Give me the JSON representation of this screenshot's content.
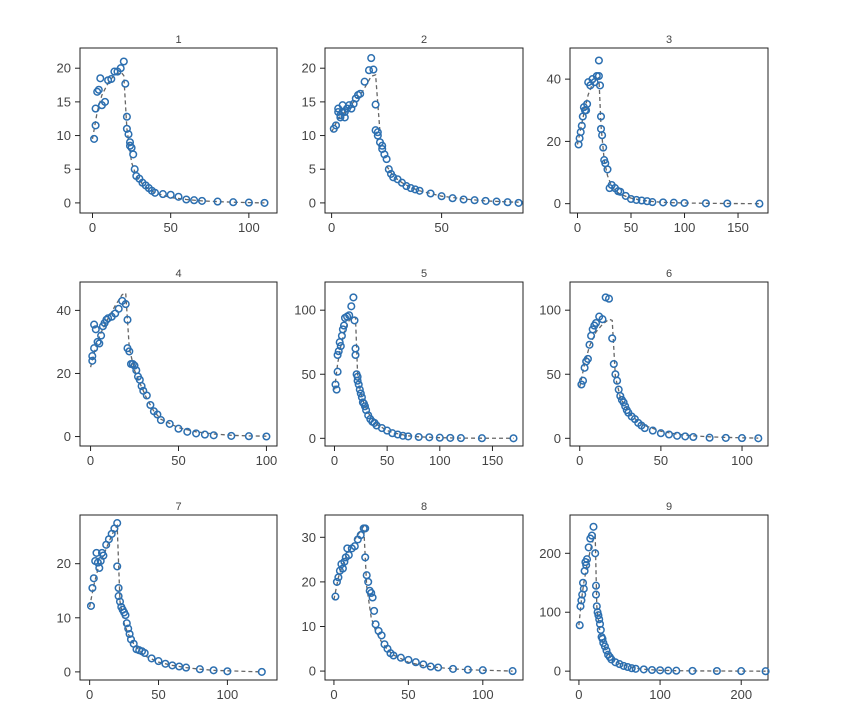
{
  "colors": {
    "marker": "#2c6fb0",
    "fit": "#666666",
    "axis": "#222222",
    "text": "#444444"
  },
  "chart_data": [
    {
      "type": "scatter",
      "title": "1",
      "xlim": [
        -8,
        118
      ],
      "ylim": [
        -1.5,
        23
      ],
      "xticks": [
        0,
        50,
        100
      ],
      "yticks": [
        0,
        5,
        10,
        15,
        20
      ],
      "x": [
        1,
        2,
        2,
        3,
        4,
        5,
        6,
        8,
        10,
        12,
        14,
        16,
        18,
        20,
        21,
        22,
        22,
        23,
        24,
        24,
        25,
        26,
        27,
        28,
        30,
        32,
        34,
        36,
        38,
        40,
        45,
        50,
        55,
        60,
        65,
        70,
        80,
        90,
        100,
        110
      ],
      "y": [
        9.5,
        11.5,
        14,
        16.5,
        16.8,
        18.5,
        14.5,
        15,
        18.2,
        18.4,
        19.5,
        19.5,
        20,
        21,
        17.7,
        12.8,
        11,
        10.2,
        9,
        8.5,
        8.2,
        7.2,
        5,
        4,
        3.6,
        3,
        2.6,
        2.2,
        1.8,
        1.5,
        1.3,
        1.2,
        0.9,
        0.5,
        0.4,
        0.3,
        0.2,
        0.1,
        0.05,
        0
      ],
      "fit_x": [
        0,
        3,
        6,
        10,
        14,
        18,
        19,
        20,
        22,
        25,
        28,
        32,
        36,
        40,
        50,
        60,
        70,
        80,
        90,
        100,
        110
      ],
      "fit_y": [
        9.5,
        13.5,
        16,
        17.8,
        19,
        19.4,
        19.2,
        18.9,
        11,
        6,
        4,
        2.8,
        2,
        1.5,
        0.8,
        0.5,
        0.3,
        0.2,
        0.1,
        0.05,
        0
      ]
    },
    {
      "type": "scatter",
      "title": "2",
      "xlim": [
        -3,
        87
      ],
      "ylim": [
        -1.5,
        23
      ],
      "xticks": [
        0,
        50
      ],
      "yticks": [
        0,
        5,
        10,
        15,
        20
      ],
      "x": [
        1,
        2,
        3,
        3,
        4,
        4,
        5,
        5,
        6,
        6,
        7,
        8,
        9,
        10,
        11,
        12,
        13,
        15,
        17,
        18,
        19,
        20,
        20,
        21,
        21,
        22,
        23,
        23,
        24,
        25,
        26,
        27,
        28,
        30,
        32,
        34,
        36,
        38,
        40,
        45,
        50,
        55,
        60,
        65,
        70,
        75,
        80,
        85
      ],
      "y": [
        11,
        11.5,
        13.5,
        14,
        12.7,
        13,
        13.5,
        14.5,
        12.7,
        13.5,
        14,
        14.5,
        14,
        14.7,
        15.5,
        16,
        16.2,
        18,
        19.7,
        21.5,
        19.8,
        14.6,
        10.8,
        10.5,
        10,
        9,
        8.5,
        8,
        7.2,
        6.5,
        5,
        4.3,
        3.8,
        3.5,
        3,
        2.5,
        2.2,
        2,
        1.8,
        1.4,
        1,
        0.7,
        0.5,
        0.4,
        0.3,
        0.2,
        0.1,
        0
      ],
      "fit_x": [
        0,
        3,
        6,
        10,
        14,
        18,
        20,
        22,
        25,
        28,
        32,
        36,
        40,
        50,
        60,
        70,
        80,
        85
      ],
      "fit_y": [
        10.5,
        12.5,
        13.5,
        15,
        16.5,
        18.8,
        19,
        10.5,
        5.5,
        4,
        3,
        2.3,
        1.8,
        1,
        0.6,
        0.3,
        0.15,
        0.1
      ],
      "fit_split": 7
    },
    {
      "type": "scatter",
      "title": "3",
      "xlim": [
        -7,
        178
      ],
      "ylim": [
        -3,
        50
      ],
      "xticks": [
        0,
        50,
        100,
        150
      ],
      "yticks": [
        0,
        20,
        40
      ],
      "x": [
        1,
        2,
        3,
        4,
        5,
        6,
        7,
        8,
        9,
        10,
        12,
        14,
        16,
        18,
        20,
        20,
        21,
        22,
        22,
        23,
        24,
        25,
        26,
        28,
        30,
        32,
        35,
        38,
        40,
        45,
        50,
        55,
        60,
        65,
        70,
        80,
        90,
        100,
        120,
        140,
        170
      ],
      "y": [
        19,
        21,
        23,
        25,
        28,
        31,
        30,
        30,
        32,
        39,
        38,
        40,
        39,
        41,
        46,
        41,
        38,
        28,
        24,
        22,
        18,
        14,
        13,
        11,
        5,
        6,
        5,
        4,
        3.8,
        2.5,
        1.5,
        1.2,
        1,
        0.8,
        0.5,
        0.4,
        0.3,
        0.2,
        0.1,
        0.05,
        0
      ],
      "fit_x": [
        0,
        3,
        6,
        10,
        14,
        18,
        20,
        22,
        25,
        28,
        32,
        36,
        40,
        50,
        60,
        70,
        80,
        100,
        120,
        140,
        170
      ],
      "fit_y": [
        19,
        24,
        29,
        35,
        38.5,
        40,
        40.5,
        25,
        14,
        9,
        5.5,
        4,
        3,
        1.8,
        1.1,
        0.7,
        0.4,
        0.2,
        0.1,
        0.05,
        0
      ]
    },
    {
      "type": "scatter",
      "title": "4",
      "xlim": [
        -6,
        106
      ],
      "ylim": [
        -3,
        49
      ],
      "xticks": [
        0,
        50,
        100
      ],
      "yticks": [
        0,
        20,
        40
      ],
      "x": [
        1,
        1,
        2,
        2,
        3,
        4,
        5,
        6,
        7,
        8,
        9,
        10,
        12,
        14,
        16,
        18,
        20,
        21,
        21,
        22,
        23,
        24,
        25,
        26,
        27,
        28,
        29,
        30,
        32,
        34,
        36,
        38,
        40,
        45,
        50,
        55,
        60,
        65,
        70,
        80,
        90,
        100
      ],
      "y": [
        24,
        25.5,
        28,
        35.5,
        34,
        30,
        29.5,
        32,
        35,
        36,
        37,
        37.5,
        38,
        39,
        40.5,
        43,
        42,
        37,
        28,
        27,
        23,
        23,
        22.5,
        21,
        19,
        18,
        16,
        14.5,
        13,
        10,
        8,
        7,
        5.2,
        4,
        2.5,
        1.5,
        1,
        0.6,
        0.4,
        0.2,
        0.1,
        0
      ],
      "fit_x": [
        0,
        3,
        6,
        10,
        14,
        18,
        20,
        22,
        25,
        28,
        32,
        36,
        40,
        50,
        60,
        70,
        80,
        90,
        100
      ],
      "fit_y": [
        22,
        28.5,
        33,
        37.5,
        41.5,
        45,
        45.5,
        28,
        21,
        17,
        12,
        8,
        5.5,
        2.8,
        1.5,
        0.8,
        0.4,
        0.2,
        0.1
      ]
    },
    {
      "type": "scatter",
      "title": "5",
      "xlim": [
        -9,
        179
      ],
      "ylim": [
        -6,
        122
      ],
      "xticks": [
        0,
        50,
        100,
        150
      ],
      "yticks": [
        0,
        50,
        100
      ],
      "x": [
        1,
        2,
        3,
        3,
        4,
        5,
        6,
        7,
        8,
        9,
        10,
        12,
        14,
        16,
        18,
        19,
        20,
        20,
        21,
        22,
        22,
        23,
        24,
        25,
        26,
        27,
        28,
        29,
        30,
        32,
        34,
        36,
        38,
        40,
        45,
        50,
        55,
        60,
        65,
        70,
        80,
        90,
        100,
        110,
        120,
        140,
        170
      ],
      "y": [
        42,
        38,
        52,
        65,
        68,
        75,
        72,
        80,
        85,
        88,
        94,
        95,
        96,
        103,
        110,
        92,
        70,
        65,
        50,
        48,
        45,
        42,
        38,
        35,
        32,
        28,
        27,
        25,
        22,
        18,
        15,
        13,
        12,
        10,
        8,
        6,
        4,
        3,
        2,
        1.5,
        1,
        0.8,
        0.5,
        0.3,
        0.2,
        0.1,
        0
      ],
      "fit_x": [
        0,
        3,
        6,
        10,
        14,
        18,
        20,
        22,
        25,
        28,
        32,
        36,
        40,
        50,
        60,
        70,
        80,
        100,
        120,
        140,
        170
      ],
      "fit_y": [
        38,
        58,
        72,
        85,
        92,
        95,
        94,
        50,
        35,
        27,
        20,
        15,
        11,
        6,
        3.5,
        2,
        1.2,
        0.5,
        0.2,
        0.1,
        0
      ]
    },
    {
      "type": "scatter",
      "title": "6",
      "xlim": [
        -6,
        116
      ],
      "ylim": [
        -6,
        122
      ],
      "xticks": [
        0,
        50,
        100
      ],
      "yticks": [
        0,
        50,
        100
      ],
      "x": [
        1,
        2,
        3,
        4,
        5,
        6,
        7,
        8,
        9,
        10,
        12,
        14,
        16,
        18,
        20,
        21,
        22,
        23,
        24,
        25,
        26,
        27,
        28,
        29,
        30,
        32,
        34,
        36,
        38,
        40,
        45,
        50,
        55,
        60,
        65,
        70,
        80,
        90,
        100,
        110
      ],
      "y": [
        42,
        45,
        55,
        60,
        62,
        73,
        80,
        85,
        88,
        90,
        95,
        93,
        110,
        109,
        78,
        58,
        50,
        45,
        38,
        33,
        30,
        28,
        25,
        22,
        20,
        17,
        15,
        12,
        10,
        8,
        6,
        4,
        3,
        2,
        1.5,
        1,
        0.5,
        0.3,
        0.2,
        0
      ],
      "fit_x": [
        0,
        3,
        6,
        10,
        14,
        18,
        20,
        22,
        25,
        28,
        32,
        36,
        40,
        50,
        60,
        70,
        80,
        90,
        100,
        110
      ],
      "fit_y": [
        40,
        58,
        72,
        83,
        89,
        93,
        92,
        48,
        32,
        25,
        18,
        13,
        10,
        5.5,
        3.2,
        2,
        1.2,
        0.7,
        0.4,
        0.2
      ]
    },
    {
      "type": "scatter",
      "title": "7",
      "xlim": [
        -7,
        136
      ],
      "ylim": [
        -1.5,
        29
      ],
      "xticks": [
        0,
        50,
        100
      ],
      "yticks": [
        0,
        10,
        20
      ],
      "x": [
        1,
        2,
        3,
        4,
        5,
        6,
        7,
        8,
        9,
        10,
        12,
        14,
        16,
        18,
        20,
        20,
        21,
        21,
        22,
        23,
        24,
        25,
        26,
        27,
        28,
        29,
        30,
        32,
        34,
        36,
        38,
        40,
        45,
        50,
        55,
        60,
        65,
        70,
        80,
        90,
        100,
        125
      ],
      "y": [
        12.2,
        15.5,
        17.3,
        20.5,
        22,
        20.2,
        19.2,
        20.5,
        22,
        21.5,
        23.5,
        24.5,
        25.5,
        26.5,
        27.5,
        19.5,
        15.5,
        14,
        13,
        12,
        11.5,
        11,
        10.5,
        9,
        8,
        7,
        6,
        5.2,
        4.2,
        4,
        3.8,
        3.5,
        2.5,
        2,
        1.5,
        1.2,
        1,
        0.8,
        0.5,
        0.3,
        0.1,
        0
      ],
      "fit_x": [
        0,
        3,
        6,
        10,
        14,
        18,
        20,
        22,
        25,
        28,
        32,
        36,
        40,
        50,
        60,
        70,
        80,
        90,
        100,
        125
      ],
      "fit_y": [
        12,
        16,
        19,
        21.5,
        24,
        26.3,
        27,
        13,
        9,
        7,
        5.2,
        4,
        3,
        1.8,
        1.2,
        0.8,
        0.5,
        0.3,
        0.2,
        0
      ]
    },
    {
      "type": "scatter",
      "title": "8",
      "xlim": [
        -6,
        127
      ],
      "ylim": [
        -2,
        35
      ],
      "xticks": [
        0,
        50,
        100
      ],
      "yticks": [
        0,
        10,
        20,
        30
      ],
      "x": [
        1,
        2,
        3,
        4,
        5,
        6,
        7,
        8,
        9,
        10,
        12,
        14,
        16,
        18,
        20,
        21,
        21,
        22,
        23,
        24,
        25,
        26,
        27,
        28,
        30,
        32,
        34,
        36,
        38,
        40,
        45,
        50,
        55,
        60,
        65,
        70,
        80,
        90,
        100,
        120
      ],
      "y": [
        16.7,
        20,
        21,
        22.5,
        24,
        23,
        24.5,
        25.5,
        27.5,
        26,
        27.5,
        28,
        29.5,
        30.5,
        32,
        32,
        25.5,
        21.5,
        20,
        18,
        17.5,
        16.5,
        13.5,
        10.5,
        9,
        8,
        6,
        5,
        4,
        3.5,
        3,
        2.5,
        2,
        1.5,
        1,
        0.8,
        0.5,
        0.3,
        0.2,
        0
      ],
      "fit_x": [
        0,
        3,
        6,
        10,
        14,
        18,
        20,
        22,
        25,
        28,
        32,
        36,
        40,
        50,
        60,
        70,
        80,
        90,
        100,
        120
      ],
      "fit_y": [
        16,
        21,
        24,
        27,
        29.5,
        31.5,
        32.5,
        19,
        12,
        9,
        6.5,
        4.8,
        3.6,
        2,
        1.2,
        0.8,
        0.5,
        0.3,
        0.2,
        0
      ]
    },
    {
      "type": "scatter",
      "title": "9",
      "xlim": [
        -11,
        233
      ],
      "ylim": [
        -15,
        265
      ],
      "xticks": [
        0,
        100,
        200
      ],
      "yticks": [
        0,
        100,
        200
      ],
      "x": [
        1,
        2,
        3,
        4,
        5,
        6,
        7,
        8,
        9,
        10,
        12,
        14,
        16,
        18,
        20,
        21,
        21,
        22,
        23,
        24,
        25,
        26,
        27,
        28,
        29,
        30,
        32,
        34,
        36,
        38,
        40,
        45,
        50,
        55,
        60,
        65,
        70,
        80,
        90,
        100,
        110,
        120,
        140,
        170,
        200,
        230
      ],
      "y": [
        78,
        110,
        120,
        130,
        150,
        140,
        170,
        185,
        180,
        190,
        210,
        225,
        230,
        245,
        200,
        145,
        130,
        110,
        100,
        95,
        88,
        80,
        70,
        58,
        55,
        48,
        42,
        35,
        28,
        24,
        20,
        15,
        12,
        9,
        7,
        5,
        4,
        3,
        2,
        1.5,
        1,
        0.8,
        0.5,
        0.3,
        0.1,
        0
      ],
      "fit_x": [
        0,
        3,
        6,
        10,
        14,
        18,
        20,
        22,
        25,
        28,
        32,
        36,
        40,
        50,
        60,
        70,
        80,
        100,
        120,
        140,
        170,
        200,
        230
      ],
      "fit_y": [
        78,
        120,
        150,
        180,
        205,
        225,
        230,
        110,
        75,
        55,
        40,
        30,
        23,
        13,
        8,
        5,
        3.2,
        1.5,
        0.8,
        0.4,
        0.2,
        0.1,
        0
      ]
    }
  ]
}
